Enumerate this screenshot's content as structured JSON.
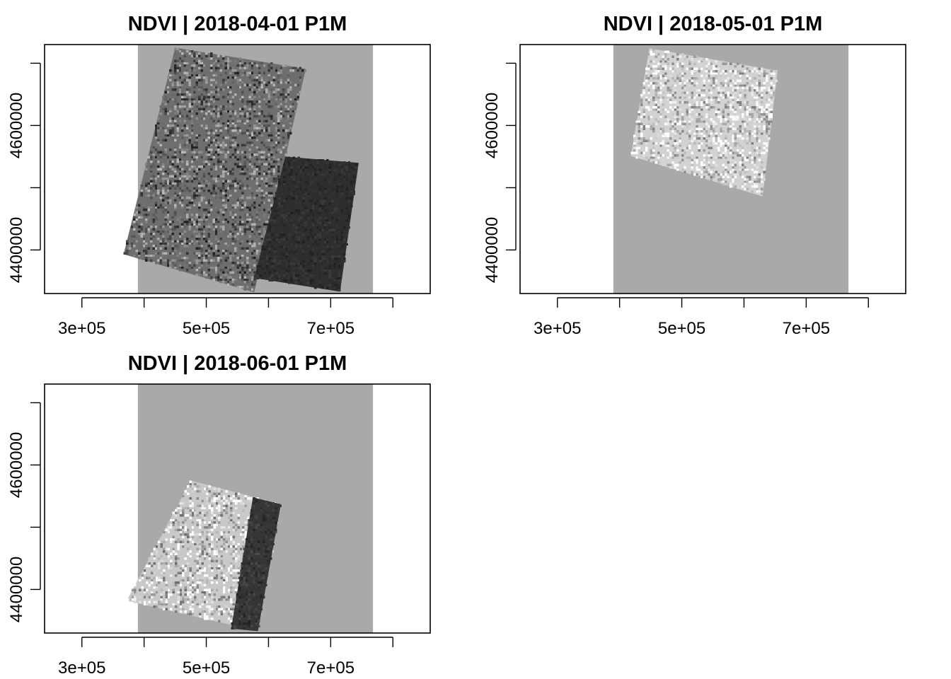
{
  "chart_data": [
    {
      "type": "heatmap",
      "title": "NDVI | 2018-04-01 P1M",
      "xlabel": "",
      "ylabel": "",
      "xlim": [
        240000,
        860000
      ],
      "ylim": [
        4330000,
        4730000
      ],
      "x_ticks": [
        300000,
        400000,
        500000,
        600000,
        700000,
        800000
      ],
      "x_tick_labels": [
        "3e+05",
        "",
        "5e+05",
        "",
        "7e+05",
        ""
      ],
      "y_ticks": [
        4400000,
        4500000,
        4600000,
        4700000
      ],
      "y_tick_labels": [
        "4400000",
        "",
        "4600000",
        ""
      ],
      "colormap": "grayscale",
      "grid": false,
      "raster_extent": {
        "x": [
          390000,
          768000
        ],
        "y": [
          4330000,
          4730000
        ]
      },
      "nodata_color": "#a9a9a9",
      "footprints": [
        {
          "shade": "#6e6e6e",
          "texture": 0.22,
          "corners": [
            [
              450000,
              4725000
            ],
            [
              660000,
              4691000
            ],
            [
              577000,
              4332000
            ],
            [
              367000,
              4393000
            ]
          ]
        },
        {
          "shade": "#2e2e2e",
          "texture": 0.04,
          "corners": [
            [
              627000,
              4550000
            ],
            [
              745000,
              4540000
            ],
            [
              715000,
              4333000
            ],
            [
              577000,
              4355000
            ]
          ]
        }
      ]
    },
    {
      "type": "heatmap",
      "title": "NDVI | 2018-05-01 P1M",
      "xlabel": "",
      "ylabel": "",
      "xlim": [
        240000,
        860000
      ],
      "ylim": [
        4330000,
        4730000
      ],
      "x_ticks": [
        300000,
        400000,
        500000,
        600000,
        700000,
        800000
      ],
      "x_tick_labels": [
        "3e+05",
        "",
        "5e+05",
        "",
        "7e+05",
        ""
      ],
      "y_ticks": [
        4400000,
        4500000,
        4600000,
        4700000
      ],
      "y_tick_labels": [
        "4400000",
        "",
        "4600000",
        ""
      ],
      "colormap": "grayscale",
      "grid": false,
      "raster_extent": {
        "x": [
          390000,
          768000
        ],
        "y": [
          4330000,
          4730000
        ]
      },
      "nodata_color": "#a9a9a9",
      "footprints": [
        {
          "shade": "#d2d2d2",
          "texture": 0.24,
          "corners": [
            [
              448000,
              4724000
            ],
            [
              654000,
              4688000
            ],
            [
              630000,
              4486000
            ],
            [
              418000,
              4551000
            ]
          ]
        }
      ]
    },
    {
      "type": "heatmap",
      "title": "NDVI | 2018-06-01 P1M",
      "xlabel": "",
      "ylabel": "",
      "xlim": [
        240000,
        860000
      ],
      "ylim": [
        4330000,
        4730000
      ],
      "x_ticks": [
        300000,
        400000,
        500000,
        600000,
        700000,
        800000
      ],
      "x_tick_labels": [
        "3e+05",
        "",
        "5e+05",
        "",
        "7e+05",
        ""
      ],
      "y_ticks": [
        4400000,
        4500000,
        4600000,
        4700000
      ],
      "y_tick_labels": [
        "4400000",
        "",
        "4600000",
        ""
      ],
      "colormap": "grayscale",
      "grid": false,
      "raster_extent": {
        "x": [
          390000,
          768000
        ],
        "y": [
          4330000,
          4730000
        ]
      },
      "nodata_color": "#a9a9a9",
      "footprints": [
        {
          "shade": "#c9c9c9",
          "texture": 0.26,
          "corners": [
            [
              475000,
              4575000
            ],
            [
              620000,
              4537000
            ],
            [
              583000,
              4333000
            ],
            [
              372000,
              4382000
            ]
          ]
        },
        {
          "shade": "#363636",
          "texture": 0.06,
          "corners": [
            [
              575000,
              4548000
            ],
            [
              620000,
              4537000
            ],
            [
              583000,
              4333000
            ],
            [
              540000,
              4337000
            ]
          ]
        }
      ]
    }
  ]
}
